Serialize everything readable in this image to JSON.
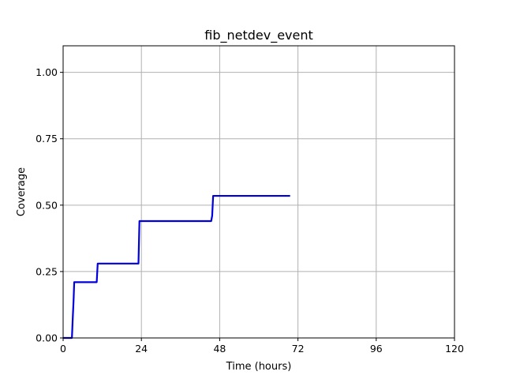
{
  "chart_data": {
    "type": "line",
    "title": "fib_netdev_event",
    "xlabel": "Time (hours)",
    "ylabel": "Coverage",
    "xlim": [
      0,
      120
    ],
    "ylim": [
      0,
      1.1
    ],
    "xticks": [
      0,
      24,
      48,
      72,
      96,
      120
    ],
    "xtick_labels": [
      "0",
      "24",
      "48",
      "72",
      "96",
      "120"
    ],
    "yticks": [
      0.0,
      0.25,
      0.5,
      0.75,
      1.0
    ],
    "ytick_labels": [
      "0.00",
      "0.25",
      "0.50",
      "0.75",
      "1.00"
    ],
    "grid": true,
    "series": [
      {
        "color": "#0000dd",
        "x": [
          0,
          2.7,
          2.9,
          3.2,
          3.4,
          10.3,
          10.6,
          23.1,
          23.4,
          45.4,
          45.7,
          46.0,
          69.6
        ],
        "y": [
          0,
          0,
          0.06,
          0.14,
          0.21,
          0.21,
          0.28,
          0.28,
          0.44,
          0.44,
          0.46,
          0.535,
          0.535
        ]
      }
    ]
  }
}
